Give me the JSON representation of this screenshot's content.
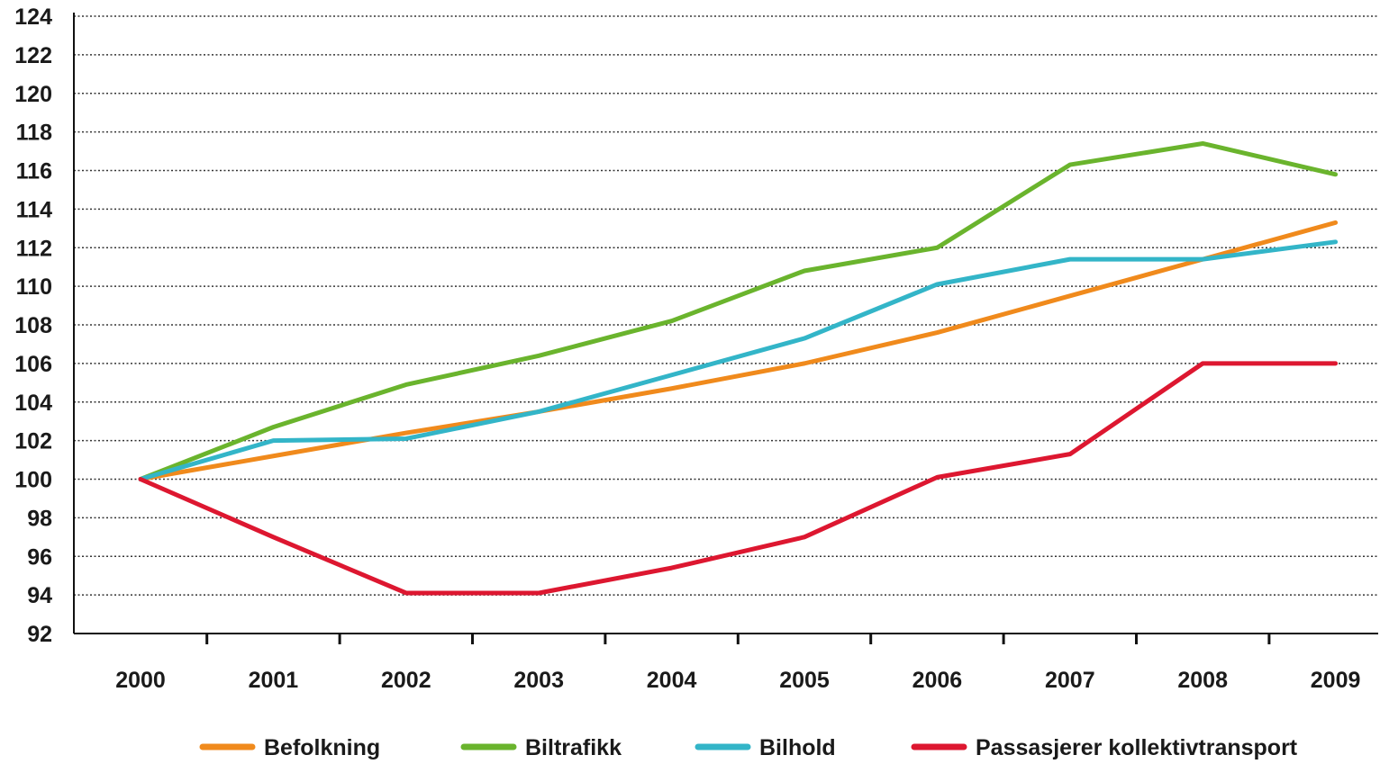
{
  "chart_data": {
    "type": "line",
    "title": "",
    "xlabel": "",
    "ylabel": "",
    "categories": [
      "2000",
      "2001",
      "2002",
      "2003",
      "2004",
      "2005",
      "2006",
      "2007",
      "2008",
      "2009"
    ],
    "yticks": [
      92,
      94,
      96,
      98,
      100,
      102,
      104,
      106,
      108,
      110,
      112,
      114,
      116,
      118,
      120,
      122,
      124
    ],
    "ylim": [
      92,
      124
    ],
    "grid": true,
    "legend_position": "bottom",
    "series": [
      {
        "name": "Befolkning",
        "color": "#f08a1c",
        "values": [
          100,
          101.2,
          102.4,
          103.5,
          104.7,
          106.0,
          107.6,
          109.5,
          111.4,
          113.3
        ]
      },
      {
        "name": "Biltrafikk",
        "color": "#6ab42d",
        "values": [
          100,
          102.7,
          104.9,
          106.4,
          108.2,
          110.8,
          112.0,
          116.3,
          117.4,
          115.8
        ]
      },
      {
        "name": "Bilhold",
        "color": "#33b5c8",
        "values": [
          100,
          102.0,
          102.1,
          103.5,
          105.4,
          107.3,
          110.1,
          111.4,
          111.4,
          112.3
        ]
      },
      {
        "name": "Passasjerer kollektivtransport",
        "color": "#dd1730",
        "values": [
          100,
          97.0,
          94.1,
          94.1,
          95.4,
          97.0,
          100.1,
          101.3,
          106.0,
          106.0
        ]
      }
    ]
  }
}
